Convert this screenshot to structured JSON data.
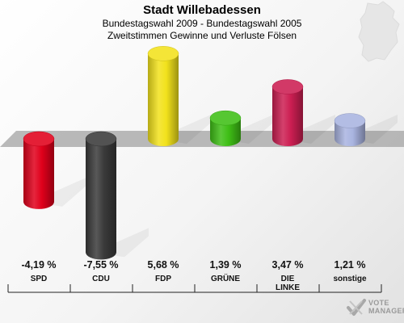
{
  "header": {
    "title": "Stadt Willebadessen",
    "subtitle1": "Bundestagswahl 2009 - Bundestagswahl 2005",
    "subtitle2": "Zweitstimmen Gewinne und Verluste Fölsen"
  },
  "branding": {
    "line1": "VOTE",
    "line2": "MANAGER"
  },
  "chart_data": {
    "type": "bar",
    "title": "Stadt Willebadessen",
    "subtitle": "Bundestagswahl 2009 - Bundestagswahl 2005 / Zweitstimmen Gewinne und Verluste Fölsen",
    "categories": [
      "SPD",
      "CDU",
      "FDP",
      "GRÜNE",
      "DIE LINKE",
      "sonstige"
    ],
    "category_labels": [
      [
        "SPD"
      ],
      [
        "CDU"
      ],
      [
        "FDP"
      ],
      [
        "GRÜNE"
      ],
      [
        "DIE",
        "LINKE"
      ],
      [
        "sonstige"
      ]
    ],
    "values": [
      -4.19,
      -7.55,
      5.68,
      1.39,
      3.47,
      1.21
    ],
    "value_labels": [
      "-4,19 %",
      "-7,55 %",
      "5,68 %",
      "1,39 %",
      "3,47 %",
      "1,21 %"
    ],
    "colors": [
      "#e0001b",
      "#3a3a3a",
      "#f2e21c",
      "#3fbf16",
      "#cc1e52",
      "#a9b4e0"
    ],
    "unit": "%",
    "ylim": [
      -7.55,
      5.68
    ],
    "grid": false,
    "legend": "none"
  }
}
